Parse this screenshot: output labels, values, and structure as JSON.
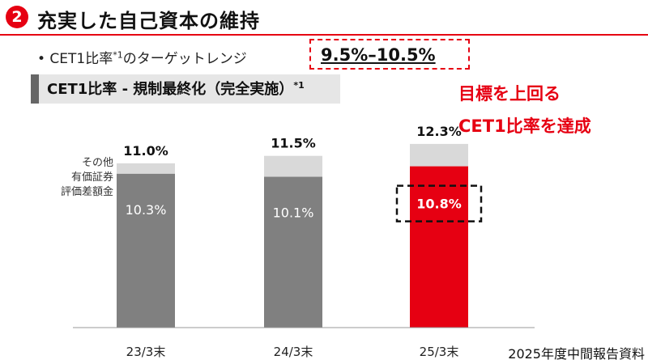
{
  "header": {
    "number": "2",
    "title": "充実した自己資本の維持"
  },
  "bullet": {
    "prefix": "• CET1比率",
    "footnote_mark": "*1",
    "suffix": "のターゲットレンジ",
    "target_range": "9.5%–10.5%"
  },
  "subheader": {
    "text": "CET1比率 - 規制最終化（完全実施）",
    "footnote_mark": "*1"
  },
  "callout": {
    "line1": "目標を上回る",
    "line2": "CET1比率を達成"
  },
  "legend": {
    "line1": "その他",
    "line2": "有価証券",
    "line3": "評価差額金"
  },
  "footer": "2025年度中間報告資料",
  "colors": {
    "accent": "#e60012",
    "bar_base": "#808080",
    "bar_highlight": "#e60012",
    "bar_other": "#d9d9d9"
  },
  "chart_data": {
    "type": "bar",
    "stacked": true,
    "categories": [
      "23/3末",
      "24/3末",
      "25/3末"
    ],
    "series": [
      {
        "values": [
          10.3,
          10.1,
          10.8
        ]
      },
      {
        "name": "その他有価証券評価差額金",
        "values": [
          0.7,
          1.4,
          1.5
        ]
      }
    ],
    "base_labels": [
      "10.3%",
      "10.1%",
      "10.8%"
    ],
    "totals": [
      11.0,
      11.5,
      12.3
    ],
    "total_labels": [
      "11.0%",
      "11.5%",
      "12.3%"
    ],
    "highlight_index": 2,
    "ylim": [
      0,
      13
    ],
    "grid": false
  }
}
